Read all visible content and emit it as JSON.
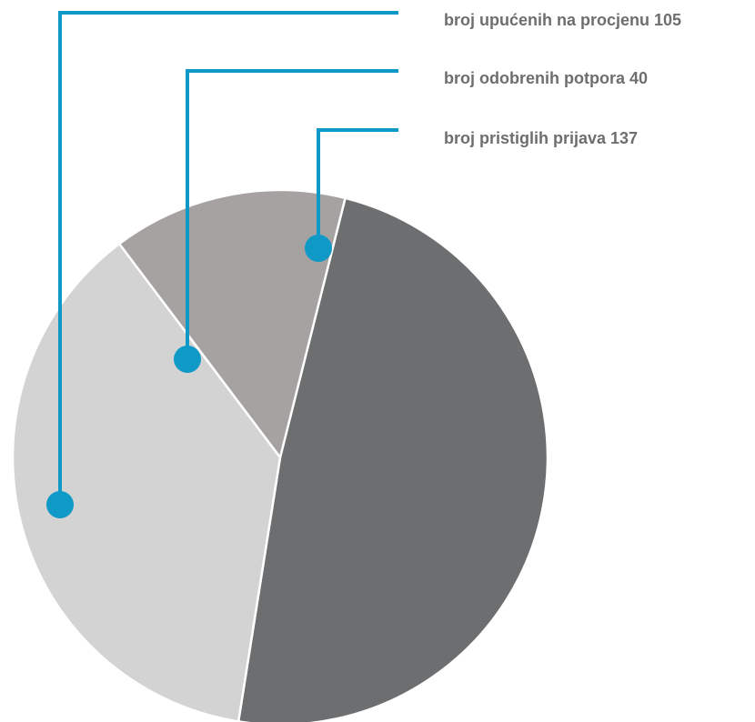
{
  "chart_data": {
    "type": "pie",
    "slices": [
      {
        "label": "broj pristiglih prijava 137",
        "value": 137,
        "color": "#6d6e70"
      },
      {
        "label": "broj upućenih na procjenu 105",
        "value": 105,
        "color": "#d4d3d3"
      },
      {
        "label": "broj odobrenih potpora 40",
        "value": 40,
        "color": "#a6a2a2"
      }
    ],
    "legend_placement": "top-right",
    "callout_color": "#0e99c7"
  }
}
